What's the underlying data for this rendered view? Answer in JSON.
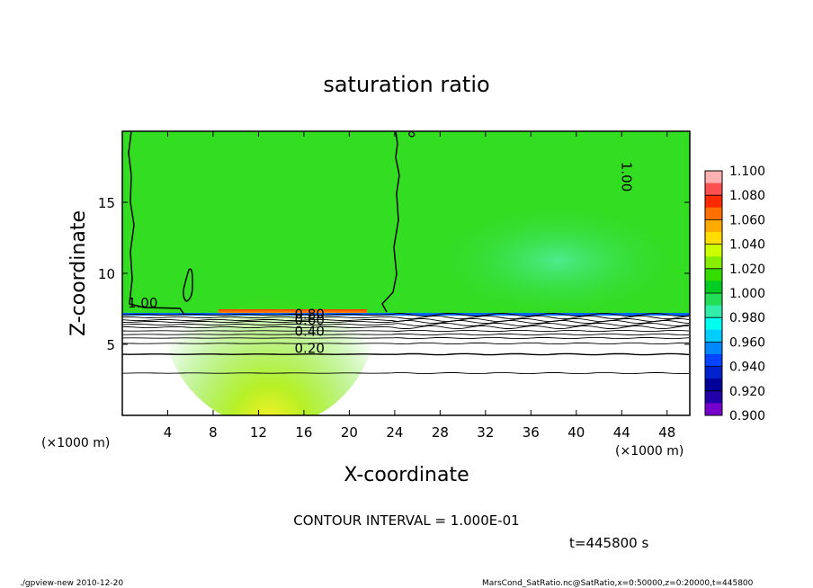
{
  "chart_data": {
    "type": "heatmap",
    "title": "saturation ratio",
    "xlabel": "X-coordinate",
    "ylabel": "Z-coordinate",
    "x_unit": "(×1000 m)",
    "y_unit": "(×1000 m)",
    "xlim": [
      0,
      50
    ],
    "ylim": [
      0,
      20
    ],
    "x_ticks": [
      4,
      8,
      12,
      16,
      20,
      24,
      28,
      32,
      36,
      40,
      44,
      48
    ],
    "y_ticks": [
      5,
      10,
      15
    ],
    "colorbar": {
      "labels": [
        "1.100",
        "1.080",
        "1.060",
        "1.040",
        "1.020",
        "1.000",
        "0.980",
        "0.960",
        "0.940",
        "0.920",
        "0.900"
      ],
      "colors": [
        "#ffb0b0",
        "#ff5050",
        "#ff2a00",
        "#ff7000",
        "#ffaa00",
        "#ffdd00",
        "#ccff00",
        "#88ee00",
        "#33dd00",
        "#00cc22",
        "#22dd55",
        "#33eeaa",
        "#00ffee",
        "#00ccff",
        "#0088ff",
        "#0044ff",
        "#0022cc",
        "#000099",
        "#2200aa",
        "#7700cc"
      ]
    },
    "contour_labels": [
      {
        "text": "1.00",
        "x": 44,
        "y": 16.8
      },
      {
        "text": "1.00",
        "x": 1.8,
        "y": 7.6
      },
      {
        "text": "0.80",
        "x": 16.5,
        "y": 6.8
      },
      {
        "text": "0.60",
        "x": 16.5,
        "y": 6.4
      },
      {
        "text": "0.40",
        "x": 16.5,
        "y": 5.6
      },
      {
        "text": "0.20",
        "x": 16.5,
        "y": 4.4
      }
    ],
    "contour_interval": "CONTOUR INTERVAL = 1.000E-01",
    "time_label": "t=445800 s"
  },
  "footer": {
    "left": "./gpview-new  2010-12-20",
    "right": "MarsCond_SatRatio.nc@SatRatio,x=0:50000,z=0:20000,t=445800"
  }
}
